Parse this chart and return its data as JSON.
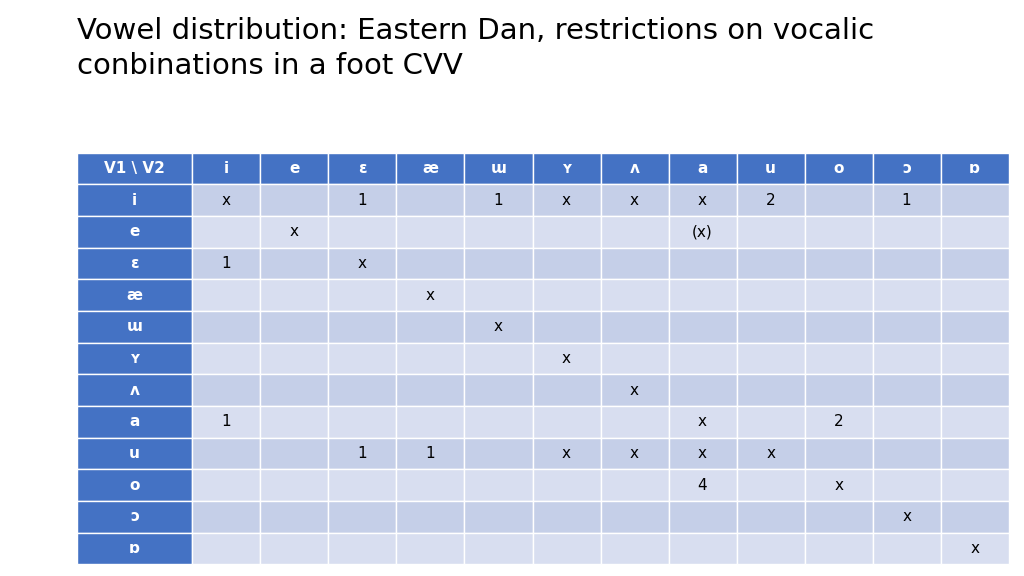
{
  "title": "Vowel distribution: Eastern Dan, restrictions on vocalic\nconbinations in a foot CVV",
  "title_fontsize": 21,
  "col_headers": [
    "V1 \\ V2",
    "i",
    "e",
    "ɛ",
    "æ",
    "ɯ",
    "ʏ",
    "ʌ",
    "a",
    "u",
    "o",
    "ɔ",
    "ɒ"
  ],
  "row_headers": [
    "i",
    "e",
    "ɛ",
    "æ",
    "ɯ",
    "ʏ",
    "ʌ",
    "a",
    "u",
    "o",
    "ɔ",
    "ɒ"
  ],
  "cell_data": [
    [
      "x",
      "",
      "1",
      "",
      "1",
      "x",
      "x",
      "x",
      "2",
      "",
      "1",
      ""
    ],
    [
      "",
      "x",
      "",
      "",
      "",
      "",
      "",
      "(x)",
      "",
      "",
      "",
      ""
    ],
    [
      "1",
      "",
      "x",
      "",
      "",
      "",
      "",
      "",
      "",
      "",
      "",
      ""
    ],
    [
      "",
      "",
      "",
      "x",
      "",
      "",
      "",
      "",
      "",
      "",
      "",
      ""
    ],
    [
      "",
      "",
      "",
      "",
      "x",
      "",
      "",
      "",
      "",
      "",
      "",
      ""
    ],
    [
      "",
      "",
      "",
      "",
      "",
      "x",
      "",
      "",
      "",
      "",
      "",
      ""
    ],
    [
      "",
      "",
      "",
      "",
      "",
      "",
      "x",
      "",
      "",
      "",
      "",
      ""
    ],
    [
      "1",
      "",
      "",
      "",
      "",
      "",
      "",
      "x",
      "",
      "2",
      "",
      ""
    ],
    [
      "",
      "",
      "1",
      "1",
      "",
      "x",
      "x",
      "x",
      "x",
      "",
      "",
      ""
    ],
    [
      "",
      "",
      "",
      "",
      "",
      "",
      "",
      "4",
      "",
      "x",
      "",
      ""
    ],
    [
      "",
      "",
      "",
      "",
      "",
      "",
      "",
      "",
      "",
      "",
      "x",
      ""
    ],
    [
      "",
      "",
      "",
      "",
      "",
      "",
      "",
      "",
      "",
      "",
      "",
      "x"
    ]
  ],
  "header_bg": "#4472C4",
  "header_text": "#FFFFFF",
  "row_header_bg": "#4472C4",
  "row_header_text": "#FFFFFF",
  "even_row_bg": "#C5CFE8",
  "odd_row_bg": "#D8DEF0",
  "cell_text": "#000000",
  "col_widths_rel": [
    1.7,
    1.0,
    1.0,
    1.0,
    1.0,
    1.0,
    1.0,
    1.0,
    1.0,
    1.0,
    1.0,
    1.0,
    1.0
  ]
}
